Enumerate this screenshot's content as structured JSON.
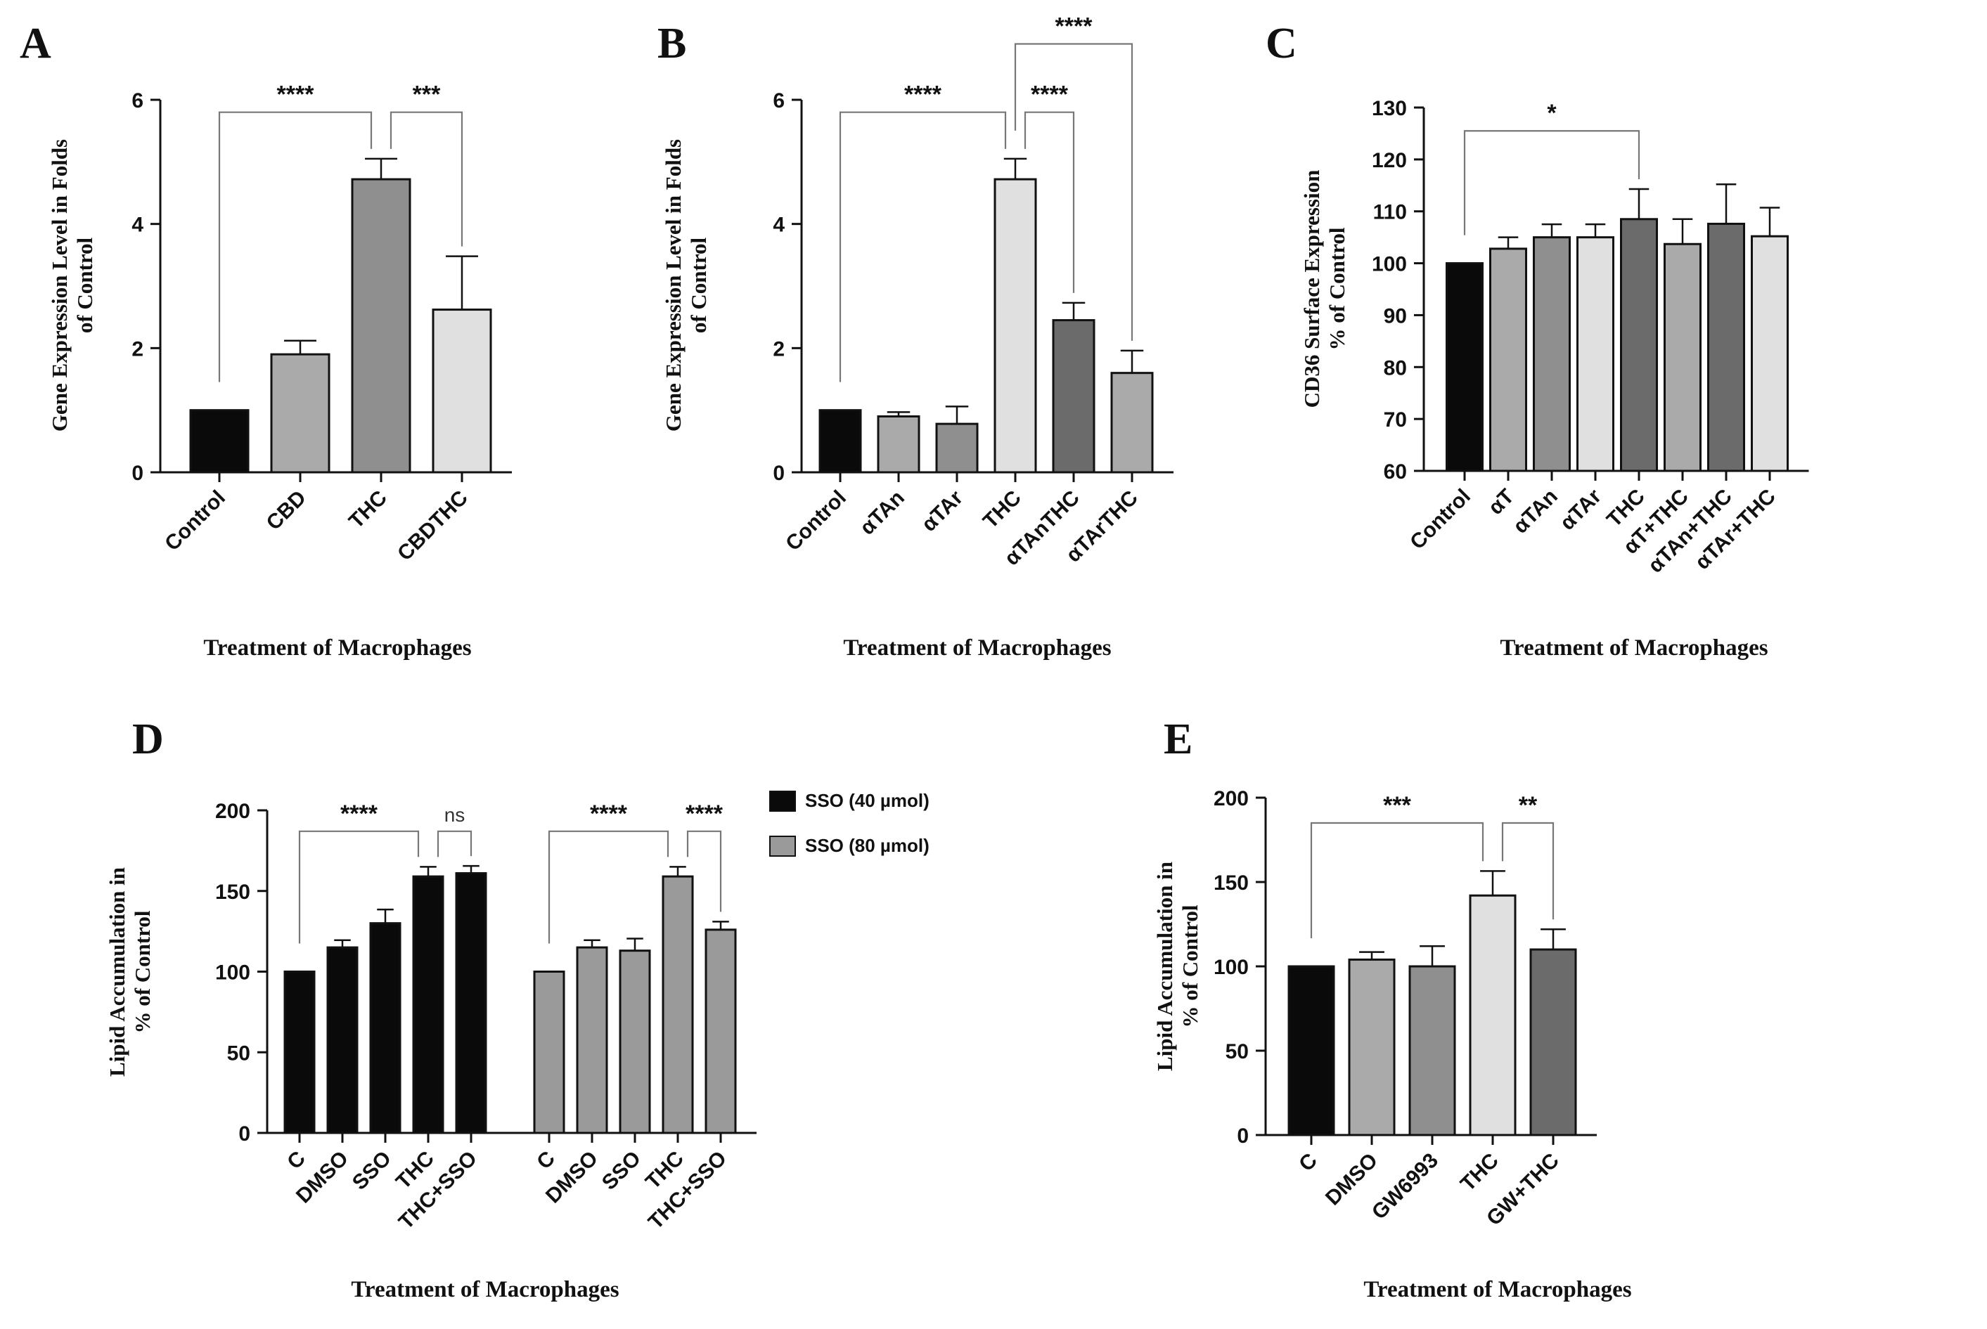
{
  "colors": {
    "black": "#0a0a0a",
    "dark_gray": "#6b6b6b",
    "mid_gray": "#8f8f8f",
    "light_gray": "#aaaaaa",
    "very_light_gray": "#e0e0e0",
    "gray": "#9a9a9a"
  },
  "chart_data": [
    {
      "panel": "A",
      "type": "bar",
      "ylabel": [
        "Gene Expression Level in Folds",
        "of Control"
      ],
      "xlabel": "Treatment of Macrophages",
      "ylim": [
        0,
        6
      ],
      "yticks": [
        0,
        2,
        4,
        6
      ],
      "categories": [
        "Control",
        "CBD",
        "THC",
        "CBDTHC"
      ],
      "values": [
        1.0,
        1.9,
        4.72,
        2.62
      ],
      "errors": [
        0,
        0.22,
        0.33,
        0.86
      ],
      "bar_colors": [
        "#0a0a0a",
        "#aaaaaa",
        "#8f8f8f",
        "#e0e0e0"
      ],
      "significance": [
        {
          "from": 0,
          "to": 2,
          "label": "****"
        },
        {
          "from": 2,
          "to": 3,
          "label": "***"
        }
      ]
    },
    {
      "panel": "B",
      "type": "bar",
      "ylabel": [
        "Gene Expression Level in Folds",
        "of Control"
      ],
      "xlabel": "Treatment of Macrophages",
      "ylim": [
        0,
        6
      ],
      "yticks": [
        0,
        2,
        4,
        6
      ],
      "categories": [
        "Control",
        "αTAn",
        "αTAr",
        "THC",
        "αTAnTHC",
        "αTArTHC"
      ],
      "values": [
        1.0,
        0.9,
        0.78,
        4.72,
        2.45,
        1.6
      ],
      "errors": [
        0,
        0.07,
        0.28,
        0.33,
        0.28,
        0.36
      ],
      "bar_colors": [
        "#0a0a0a",
        "#aaaaaa",
        "#8f8f8f",
        "#e0e0e0",
        "#6b6b6b",
        "#aaaaaa"
      ],
      "significance": [
        {
          "from": 0,
          "to": 3,
          "label": "****"
        },
        {
          "from": 3,
          "to": 4,
          "label": "****"
        },
        {
          "from": 3,
          "to": 5,
          "label": "****"
        }
      ]
    },
    {
      "panel": "C",
      "type": "bar",
      "ylabel": [
        "CD36 Surface Expression",
        "% of Control"
      ],
      "xlabel": "Treatment of Macrophages",
      "ylim": [
        60,
        130
      ],
      "yticks": [
        60,
        70,
        80,
        90,
        100,
        110,
        120,
        130
      ],
      "categories": [
        "Control",
        "αT",
        "αTAn",
        "αTAr",
        "THC",
        "αT+THC",
        "αTAn+THC",
        "αTAr+THC"
      ],
      "values": [
        100,
        102.8,
        105,
        105,
        108.5,
        103.7,
        107.6,
        105.2
      ],
      "errors": [
        0,
        2.2,
        2.5,
        2.5,
        5.8,
        4.8,
        7.6,
        5.5
      ],
      "bar_colors": [
        "#0a0a0a",
        "#aaaaaa",
        "#8f8f8f",
        "#e0e0e0",
        "#6b6b6b",
        "#aaaaaa",
        "#6b6b6b",
        "#e0e0e0"
      ],
      "significance": [
        {
          "from": 0,
          "to": 4,
          "label": "*"
        }
      ]
    },
    {
      "panel": "D",
      "type": "bar",
      "ylabel": [
        "Lipid Accumulation in",
        "% of Control"
      ],
      "xlabel": "Treatment of Macrophages",
      "ylim": [
        0,
        200
      ],
      "yticks": [
        0,
        50,
        100,
        150,
        200
      ],
      "categories": [
        "C",
        "DMSO",
        "SSO",
        "THC",
        "THC+SSO"
      ],
      "legend": [
        "SSO (40 µmol)",
        "SSO (80 µmol)"
      ],
      "series": [
        {
          "name": "SSO (40 µmol)",
          "color": "#0a0a0a",
          "values": [
            100,
            115,
            130,
            159,
            161
          ],
          "errors": [
            0,
            4.5,
            8.5,
            6,
            4.5
          ]
        },
        {
          "name": "SSO (80 µmol)",
          "color": "#9a9a9a",
          "values": [
            100,
            115,
            113,
            159,
            126
          ],
          "errors": [
            0,
            4.5,
            7.5,
            6,
            5
          ]
        }
      ],
      "significance": [
        {
          "series": 0,
          "from": 0,
          "to": 3,
          "label": "****"
        },
        {
          "series": 0,
          "from": 3,
          "to": 4,
          "label": "ns"
        },
        {
          "series": 1,
          "from": 0,
          "to": 3,
          "label": "****"
        },
        {
          "series": 1,
          "from": 3,
          "to": 4,
          "label": "****"
        }
      ]
    },
    {
      "panel": "E",
      "type": "bar",
      "ylabel": [
        "Lipid Accumulation in",
        "% of Control"
      ],
      "xlabel": "Treatment of Macrophages",
      "ylim": [
        0,
        200
      ],
      "yticks": [
        0,
        50,
        100,
        150,
        200
      ],
      "categories": [
        "C",
        "DMSO",
        "GW6993",
        "THC",
        "GW+THC"
      ],
      "values": [
        100,
        104,
        100,
        142,
        110
      ],
      "errors": [
        0,
        4.5,
        12,
        14.5,
        12
      ],
      "bar_colors": [
        "#0a0a0a",
        "#aaaaaa",
        "#8f8f8f",
        "#e0e0e0",
        "#6b6b6b"
      ],
      "significance": [
        {
          "from": 0,
          "to": 3,
          "label": "***"
        },
        {
          "from": 3,
          "to": 4,
          "label": "**"
        }
      ]
    }
  ]
}
